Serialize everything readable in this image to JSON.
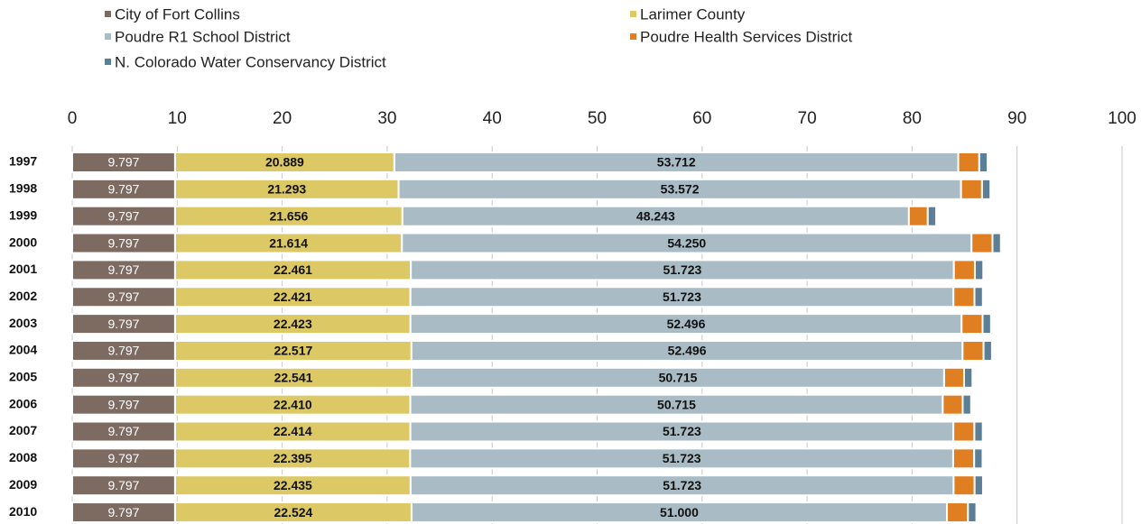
{
  "chart_data": {
    "type": "stacked_bar_horizontal",
    "categories": [
      "1997",
      "1998",
      "1999",
      "2000",
      "2001",
      "2002",
      "2003",
      "2004",
      "2005",
      "2006",
      "2007",
      "2008",
      "2009",
      "2010"
    ],
    "series": [
      {
        "name": "City of Fort Collins",
        "color": "#7d6b62",
        "values": [
          9.797,
          9.797,
          9.797,
          9.797,
          9.797,
          9.797,
          9.797,
          9.797,
          9.797,
          9.797,
          9.797,
          9.797,
          9.797,
          9.797
        ],
        "value_labels": [
          "9.797",
          "9.797",
          "9.797",
          "9.797",
          "9.797",
          "9.797",
          "9.797",
          "9.797",
          "9.797",
          "9.797",
          "9.797",
          "9.797",
          "9.797",
          "9.797"
        ]
      },
      {
        "name": "Larimer County",
        "color": "#dcc865",
        "values": [
          20.889,
          21.293,
          21.656,
          21.614,
          22.461,
          22.421,
          22.423,
          22.517,
          22.541,
          22.41,
          22.414,
          22.395,
          22.435,
          22.524
        ],
        "value_labels": [
          "20.889",
          "21.293",
          "21.656",
          "21.614",
          "22.461",
          "22.421",
          "22.423",
          "22.517",
          "22.541",
          "22.410",
          "22.414",
          "22.395",
          "22.435",
          "22.524"
        ]
      },
      {
        "name": "Poudre R1 School District",
        "color": "#a9bcc6",
        "values": [
          53.712,
          53.572,
          48.243,
          54.25,
          51.723,
          51.723,
          52.496,
          52.496,
          50.715,
          50.715,
          51.723,
          51.723,
          51.723,
          51.0
        ],
        "value_labels": [
          "53.712",
          "53.572",
          "48.243",
          "54.250",
          "51.723",
          "51.723",
          "52.496",
          "52.496",
          "50.715",
          "50.715",
          "51.723",
          "51.723",
          "51.723",
          "51.000"
        ]
      },
      {
        "name": "Poudre Health Services District",
        "color": "#e07f22",
        "values": [
          2.0,
          2.0,
          1.8,
          2.0,
          2.0,
          2.0,
          2.0,
          2.0,
          1.9,
          1.9,
          2.0,
          2.0,
          2.0,
          2.0
        ]
      },
      {
        "name": "N. Colorado Water Conservancy District",
        "color": "#5b7f97",
        "values": [
          0.8,
          0.8,
          0.8,
          0.8,
          0.8,
          0.8,
          0.8,
          0.8,
          0.8,
          0.8,
          0.8,
          0.8,
          0.8,
          0.8
        ]
      }
    ],
    "xlim": [
      0,
      100
    ],
    "xticks": [
      0,
      10,
      20,
      30,
      40,
      50,
      60,
      70,
      80,
      90,
      100
    ],
    "grid": true
  }
}
